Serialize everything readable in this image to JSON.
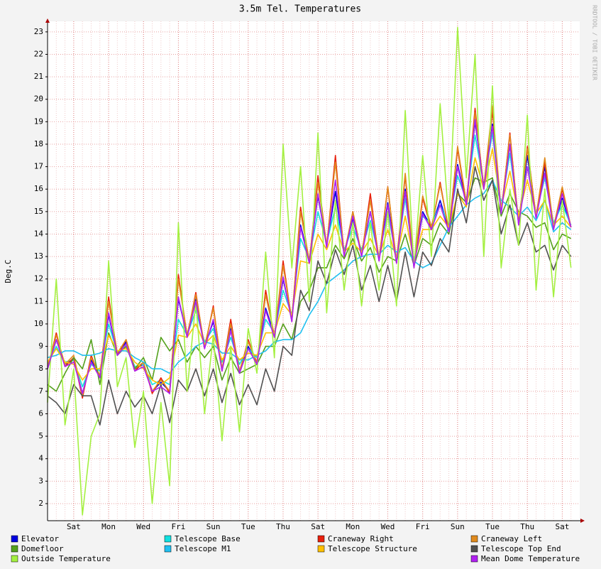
{
  "chart_data": {
    "type": "line",
    "title": "3.5m Tel. Temperatures",
    "y_label": "Deg.C",
    "watermark": "RRDTOOL / TOBI OETIKER",
    "categories": [
      null,
      null,
      null,
      "Sat",
      null,
      null,
      null,
      "Mon",
      null,
      null,
      null,
      "Wed",
      null,
      null,
      null,
      "Fri",
      null,
      null,
      null,
      "Sun",
      null,
      null,
      null,
      "Tue",
      null,
      null,
      null,
      "Thu",
      null,
      null,
      null,
      "Sat",
      null,
      null,
      null,
      "Mon",
      null,
      null,
      null,
      "Wed",
      null,
      null,
      null,
      "Fri",
      null,
      null,
      null,
      "Sun",
      null,
      null,
      null,
      "Tue",
      null,
      null,
      null,
      "Thu",
      null,
      null,
      null,
      "Sat",
      null
    ],
    "ylim": [
      1.24,
      23.47
    ],
    "yticks": [
      2,
      3,
      4,
      5,
      6,
      7,
      8,
      9,
      10,
      11,
      12,
      13,
      14,
      15,
      16,
      17,
      18,
      19,
      20,
      21,
      22,
      23
    ],
    "grid": true,
    "series": [
      {
        "name": "Elevator",
        "color": "#0000e0",
        "values": [
          8.0,
          9.3,
          8.2,
          8.4,
          6.9,
          8.4,
          7.7,
          10.4,
          8.6,
          9.2,
          8.0,
          8.2,
          7.0,
          7.4,
          7.0,
          11.1,
          9.5,
          11.1,
          9.0,
          10.1,
          8.0,
          9.8,
          7.9,
          9.0,
          8.3,
          10.7,
          9.5,
          12.0,
          10.2,
          14.4,
          12.8,
          15.7,
          13.5,
          15.9,
          13.1,
          14.7,
          13.1,
          15.0,
          12.9,
          15.4,
          12.8,
          16.0,
          12.6,
          15.0,
          14.3,
          15.5,
          14.2,
          17.1,
          15.4,
          19.0,
          16.1,
          18.9,
          15.0,
          18.0,
          14.5,
          17.5,
          14.8,
          17.0,
          14.3,
          15.6,
          14.3
        ]
      },
      {
        "name": "Telescope Base",
        "color": "#10e0e0",
        "values": [
          8.2,
          9.0,
          8.3,
          8.4,
          7.2,
          8.2,
          7.9,
          10.0,
          8.7,
          9.1,
          8.1,
          8.2,
          7.3,
          7.5,
          7.3,
          10.2,
          9.5,
          10.6,
          9.2,
          9.8,
          8.3,
          9.4,
          8.2,
          8.9,
          8.5,
          10.2,
          9.6,
          11.5,
          10.4,
          13.8,
          12.9,
          15.0,
          13.6,
          15.2,
          13.3,
          14.3,
          13.3,
          14.6,
          13.0,
          15.0,
          12.9,
          15.6,
          12.8,
          14.8,
          14.4,
          15.3,
          14.4,
          16.6,
          15.5,
          18.4,
          16.2,
          18.5,
          15.2,
          17.6,
          14.7,
          17.0,
          14.9,
          16.5,
          14.5,
          15.3,
          14.4
        ]
      },
      {
        "name": "Craneway Right",
        "color": "#e8200c",
        "values": [
          8.0,
          9.6,
          8.1,
          8.5,
          6.7,
          8.6,
          7.6,
          11.2,
          8.6,
          9.3,
          7.9,
          8.3,
          6.9,
          7.6,
          6.9,
          12.2,
          9.4,
          11.4,
          8.9,
          10.8,
          7.9,
          10.2,
          7.8,
          9.3,
          8.2,
          11.5,
          9.4,
          12.8,
          10.1,
          15.2,
          12.7,
          16.6,
          13.4,
          17.5,
          13.0,
          15.0,
          13.0,
          15.8,
          12.8,
          16.1,
          12.7,
          16.6,
          12.5,
          15.6,
          14.2,
          16.3,
          14.1,
          17.8,
          15.3,
          19.6,
          16.0,
          19.5,
          14.9,
          18.5,
          14.4,
          17.9,
          14.7,
          17.2,
          14.2,
          16.0,
          14.3
        ]
      },
      {
        "name": "Craneway Left",
        "color": "#e08a1c",
        "values": [
          8.1,
          9.5,
          8.2,
          8.6,
          6.8,
          8.5,
          7.7,
          11.0,
          8.7,
          9.3,
          8.0,
          8.3,
          7.0,
          7.5,
          7.0,
          12.0,
          9.5,
          11.3,
          9.0,
          10.7,
          8.0,
          10.0,
          7.9,
          9.2,
          8.3,
          11.3,
          9.5,
          12.6,
          10.2,
          15.0,
          12.8,
          16.3,
          13.5,
          17.2,
          13.1,
          15.0,
          13.1,
          15.5,
          12.9,
          16.1,
          12.8,
          16.7,
          12.6,
          15.7,
          14.3,
          16.2,
          14.2,
          17.9,
          15.4,
          19.4,
          16.1,
          19.7,
          15.0,
          18.4,
          14.5,
          17.8,
          14.8,
          17.4,
          14.3,
          16.1,
          14.3
        ]
      },
      {
        "name": "Domefloor",
        "color": "#54a01c",
        "values": [
          7.3,
          7.0,
          7.8,
          8.5,
          8.0,
          9.3,
          7.3,
          9.6,
          8.6,
          9.0,
          8.0,
          8.5,
          7.5,
          9.4,
          8.8,
          9.3,
          8.3,
          9.0,
          8.5,
          9.0,
          7.5,
          8.5,
          7.8,
          8.0,
          8.2,
          9.0,
          9.0,
          10.0,
          9.3,
          11.0,
          11.5,
          12.5,
          12.5,
          13.5,
          12.9,
          13.8,
          12.8,
          13.4,
          12.3,
          13.0,
          12.8,
          14.0,
          12.6,
          13.8,
          13.5,
          14.5,
          14.0,
          15.8,
          15.4,
          16.5,
          16.3,
          16.5,
          14.8,
          15.8,
          15.0,
          14.8,
          14.3,
          14.5,
          13.3,
          14.0,
          13.8
        ]
      },
      {
        "name": "Telescope M1",
        "color": "#20c0f0",
        "values": [
          8.5,
          8.6,
          8.8,
          8.8,
          8.6,
          8.6,
          8.7,
          8.9,
          8.8,
          8.8,
          8.5,
          8.3,
          8.0,
          8.0,
          7.8,
          8.3,
          8.6,
          9.0,
          9.2,
          9.1,
          8.7,
          8.7,
          8.4,
          8.4,
          8.6,
          8.8,
          9.2,
          9.3,
          9.3,
          9.6,
          10.4,
          11.0,
          11.8,
          12.1,
          12.4,
          12.8,
          13.0,
          13.1,
          13.1,
          13.5,
          13.2,
          13.4,
          12.8,
          12.5,
          12.7,
          13.5,
          14.3,
          14.8,
          15.3,
          15.6,
          15.8,
          16.4,
          15.5,
          15.2,
          14.8,
          15.2,
          14.6,
          15.5,
          14.1,
          14.5,
          14.2
        ]
      },
      {
        "name": "Telescope Structure",
        "color": "#ffc000",
        "values": [
          8.3,
          8.9,
          8.3,
          8.2,
          7.5,
          8.0,
          8.0,
          9.5,
          8.8,
          8.9,
          8.3,
          8.0,
          7.5,
          7.3,
          7.6,
          9.5,
          9.4,
          10.0,
          9.1,
          9.5,
          8.4,
          9.0,
          8.4,
          8.7,
          8.6,
          9.6,
          9.6,
          10.9,
          10.4,
          12.8,
          12.7,
          14.0,
          13.3,
          14.4,
          13.2,
          13.6,
          13.2,
          13.8,
          13.0,
          14.2,
          12.9,
          14.8,
          12.8,
          14.2,
          14.2,
          14.8,
          14.3,
          15.8,
          15.2,
          17.4,
          16.0,
          17.8,
          15.2,
          16.8,
          14.8,
          16.4,
          14.9,
          15.5,
          14.4,
          14.8,
          14.3
        ]
      },
      {
        "name": "Telescope Top End",
        "color": "#505050",
        "values": [
          6.8,
          6.5,
          6.0,
          7.3,
          6.8,
          6.8,
          5.5,
          7.5,
          6.0,
          7.0,
          6.3,
          6.8,
          6.0,
          7.3,
          5.6,
          7.5,
          7.0,
          8.0,
          6.8,
          8.0,
          6.5,
          7.8,
          6.4,
          7.3,
          6.4,
          8.0,
          7.0,
          9.0,
          8.6,
          11.5,
          10.6,
          12.8,
          11.8,
          13.3,
          12.2,
          13.5,
          11.5,
          12.6,
          11.0,
          12.6,
          11.0,
          13.2,
          11.2,
          13.2,
          12.6,
          13.8,
          13.2,
          16.0,
          14.5,
          17.0,
          15.5,
          16.4,
          14.0,
          15.3,
          13.5,
          14.5,
          13.2,
          13.5,
          12.4,
          13.5,
          13.0
        ]
      },
      {
        "name": "Outside Temperature",
        "color": "#a4f040",
        "values": [
          6.5,
          12.0,
          5.5,
          8.0,
          1.5,
          5.0,
          6.0,
          12.8,
          7.2,
          8.5,
          4.5,
          7.0,
          2.0,
          6.5,
          2.8,
          14.5,
          7.0,
          11.0,
          6.0,
          9.5,
          4.8,
          9.0,
          5.2,
          9.8,
          7.8,
          13.2,
          8.5,
          18.0,
          12.5,
          17.0,
          11.0,
          18.5,
          10.5,
          15.5,
          11.5,
          14.5,
          10.8,
          14.5,
          11.5,
          15.0,
          10.8,
          19.5,
          12.5,
          17.5,
          13.0,
          19.8,
          14.5,
          23.2,
          16.5,
          22.0,
          13.0,
          20.6,
          12.5,
          16.0,
          13.5,
          19.3,
          11.5,
          16.0,
          11.2,
          15.5,
          12.5
        ]
      },
      {
        "name": "Mean Dome Temperature",
        "color": "#b020f0",
        "values": [
          8.0,
          9.3,
          8.1,
          8.3,
          6.9,
          8.3,
          7.6,
          10.5,
          8.6,
          9.1,
          7.9,
          8.1,
          7.0,
          7.2,
          6.9,
          11.2,
          9.4,
          11.0,
          8.9,
          10.2,
          7.9,
          9.7,
          7.8,
          8.9,
          8.2,
          10.6,
          9.4,
          12.1,
          10.1,
          14.3,
          12.7,
          15.8,
          13.4,
          16.4,
          13.0,
          14.8,
          13.0,
          15.0,
          12.8,
          15.3,
          12.7,
          15.9,
          12.5,
          14.9,
          14.2,
          15.3,
          14.1,
          17.0,
          15.3,
          19.1,
          16.0,
          18.8,
          14.9,
          18.0,
          14.4,
          17.0,
          14.7,
          16.7,
          14.2,
          15.8,
          14.3
        ]
      }
    ]
  }
}
